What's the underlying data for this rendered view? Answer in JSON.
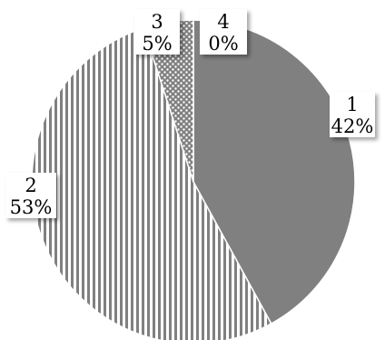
{
  "chart_data": {
    "type": "pie",
    "title": "",
    "series": [
      {
        "category": "1",
        "percent_label": "42%",
        "value": 42,
        "fill": "solid",
        "color": "#808080"
      },
      {
        "category": "2",
        "percent_label": "53%",
        "value": 53,
        "fill": "vertical-stripes",
        "color": "#808080"
      },
      {
        "category": "3",
        "percent_label": "5%",
        "value": 5,
        "fill": "dots",
        "color": "#808080"
      },
      {
        "category": "4",
        "percent_label": "0%",
        "value": 0,
        "fill": "solid",
        "color": "#808080"
      }
    ],
    "legend": "none",
    "data_labels": "category-and-percent"
  }
}
